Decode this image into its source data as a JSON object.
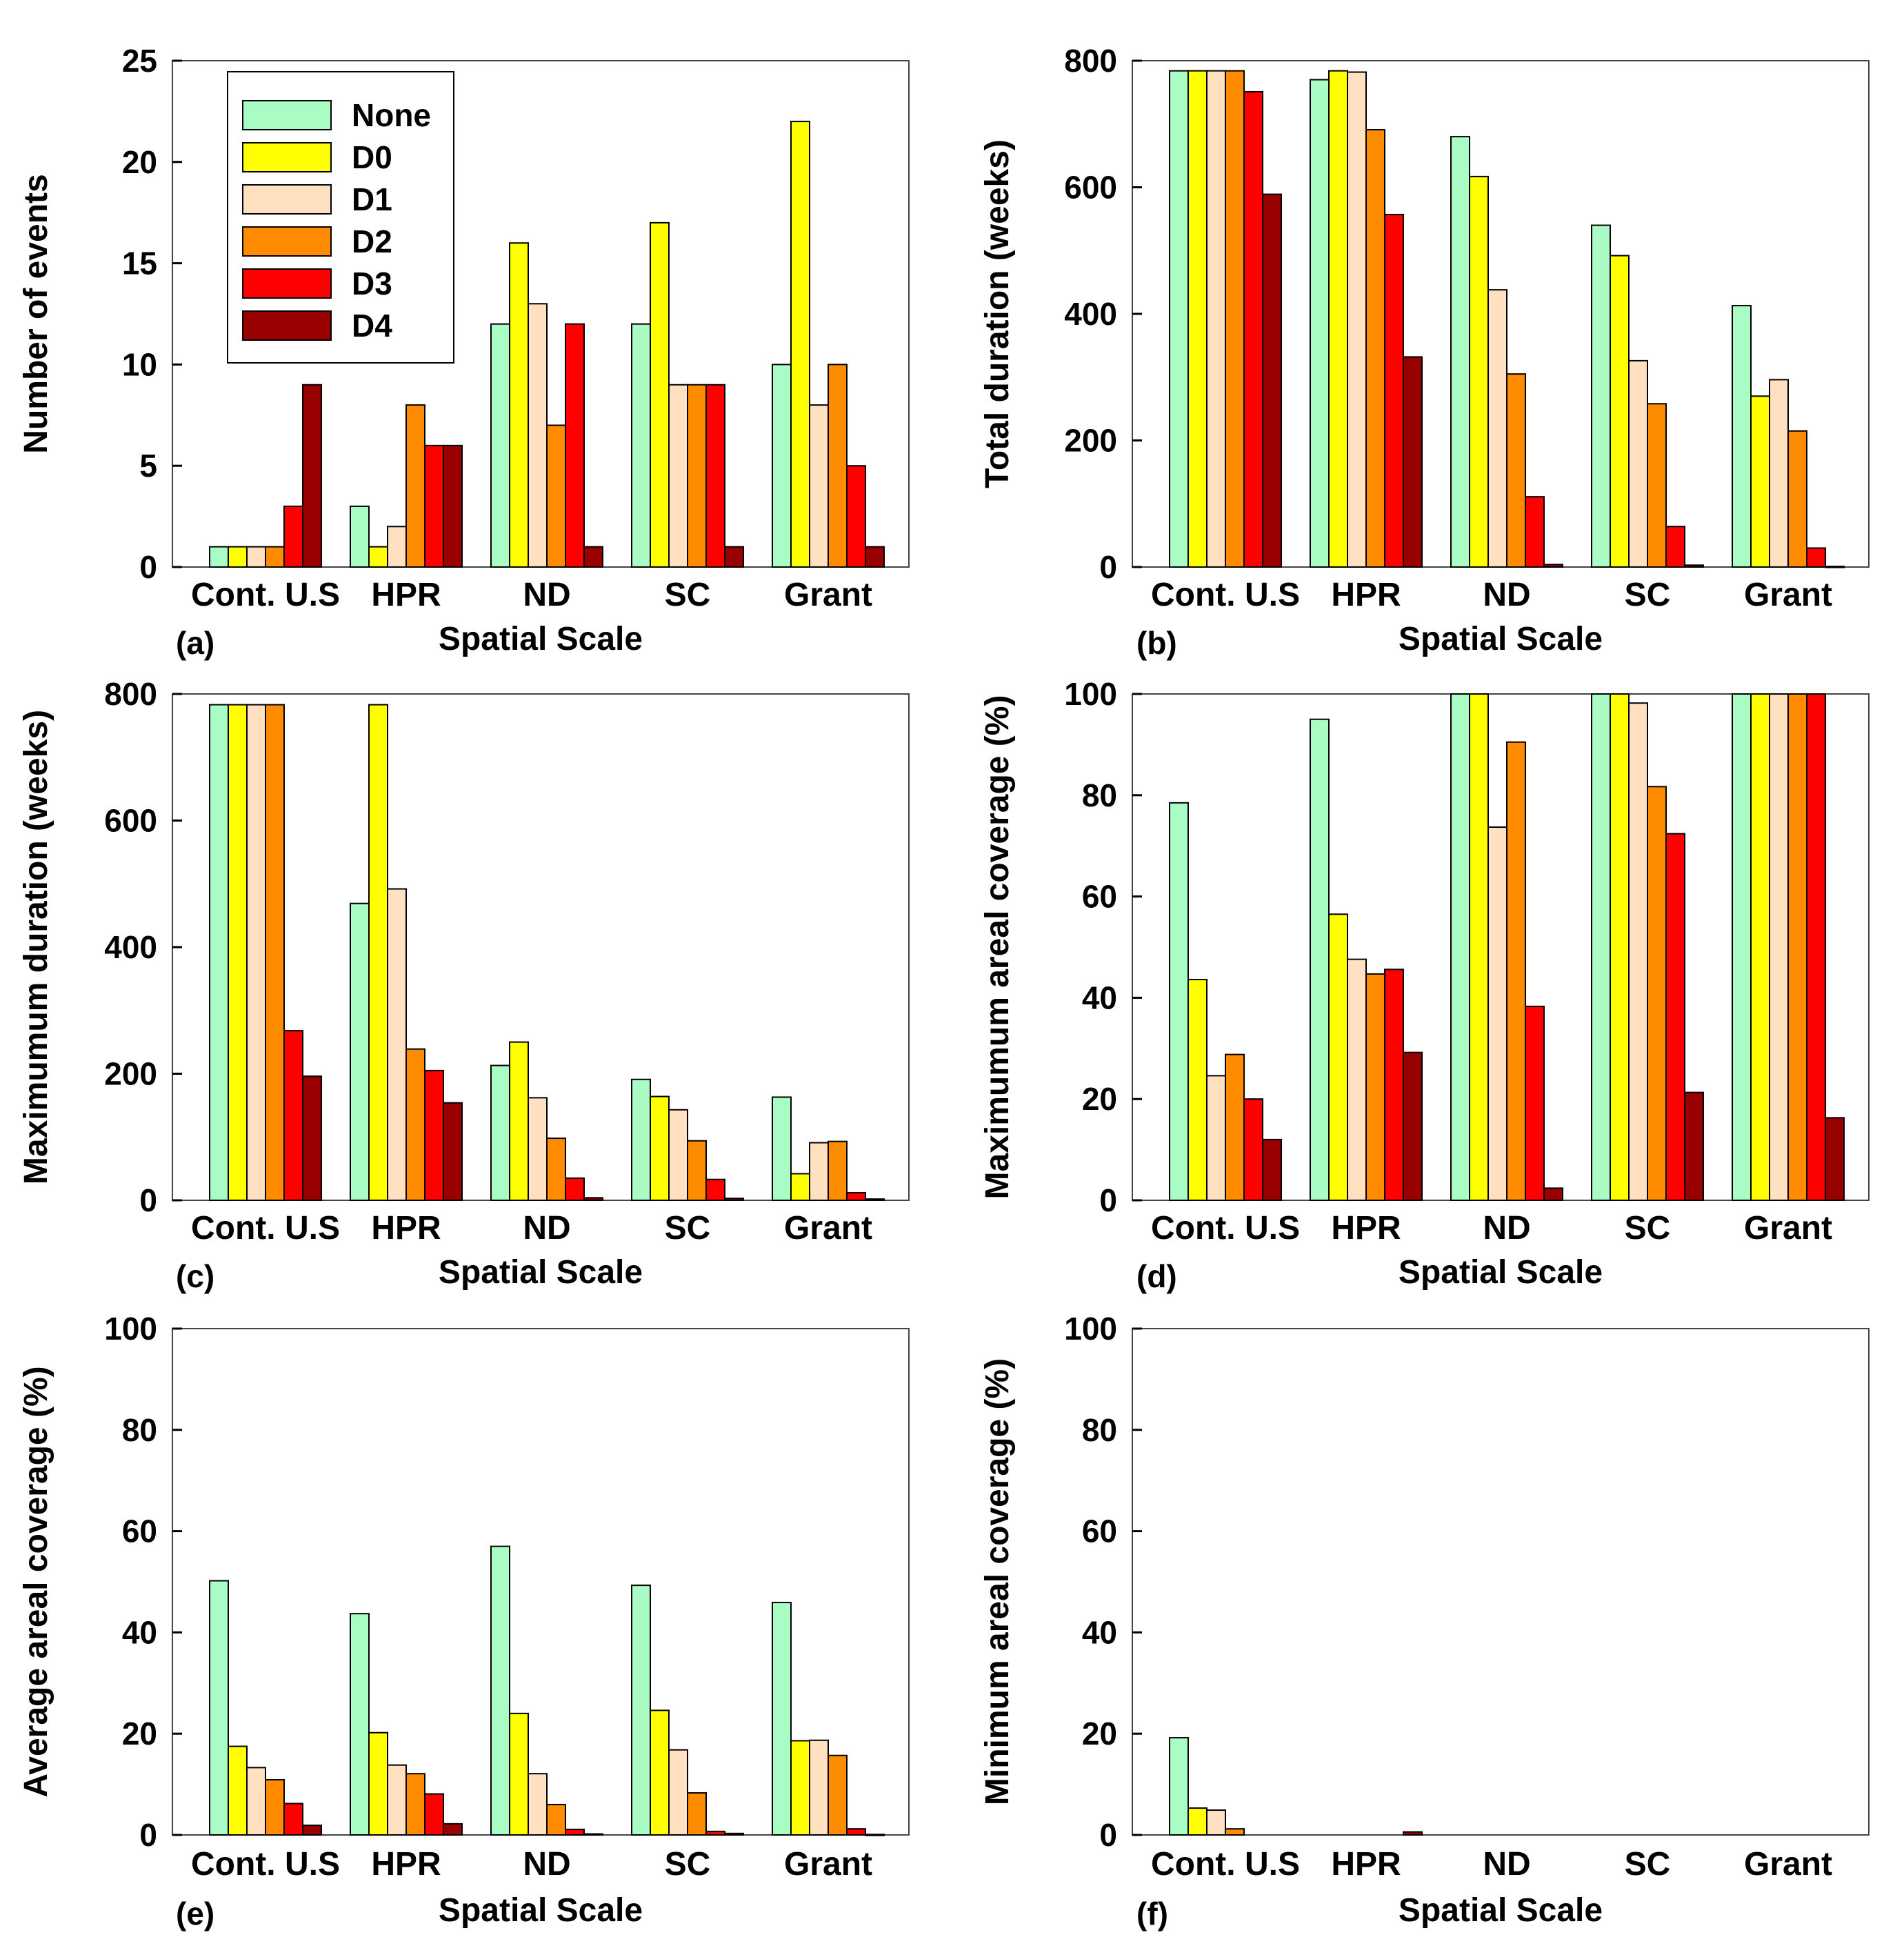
{
  "figure": {
    "legend": [
      {
        "name": "None",
        "color": "#a8fcc4"
      },
      {
        "name": "D0",
        "color": "#ffff00"
      },
      {
        "name": "D1",
        "color": "#ffe0c0"
      },
      {
        "name": "D2",
        "color": "#ff8c00"
      },
      {
        "name": "D3",
        "color": "#ff0000"
      },
      {
        "name": "D4",
        "color": "#990000"
      }
    ]
  },
  "chart_data": [
    {
      "panel": "(a)",
      "type": "bar",
      "xlabel": "Spatial Scale",
      "ylabel": "Number of events",
      "ylim": [
        0,
        25
      ],
      "yticks": [
        0,
        5,
        10,
        15,
        20,
        25
      ],
      "categories": [
        "Cont. U.S",
        "HPR",
        "ND",
        "SC",
        "Grant"
      ],
      "series": [
        {
          "name": "None",
          "values": [
            1,
            3,
            12,
            12,
            10
          ]
        },
        {
          "name": "D0",
          "values": [
            1,
            1,
            16,
            17,
            22
          ]
        },
        {
          "name": "D1",
          "values": [
            1,
            2,
            13,
            9,
            8
          ]
        },
        {
          "name": "D2",
          "values": [
            1,
            8,
            7,
            9,
            10
          ]
        },
        {
          "name": "D3",
          "values": [
            3,
            6,
            12,
            9,
            5
          ]
        },
        {
          "name": "D4",
          "values": [
            9,
            6,
            1,
            1,
            1
          ]
        }
      ]
    },
    {
      "panel": "(b)",
      "type": "bar",
      "xlabel": "Spatial Scale",
      "ylabel": "Total duration (weeks)",
      "ylim": [
        0,
        800
      ],
      "yticks": [
        0,
        200,
        400,
        600,
        800
      ],
      "categories": [
        "Cont. U.S",
        "HPR",
        "ND",
        "SC",
        "Grant"
      ],
      "series": [
        {
          "name": "None",
          "values": [
            784,
            770,
            680,
            540,
            413
          ]
        },
        {
          "name": "D0",
          "values": [
            784,
            784,
            617,
            492,
            270
          ]
        },
        {
          "name": "D1",
          "values": [
            784,
            782,
            438,
            326,
            296
          ]
        },
        {
          "name": "D2",
          "values": [
            784,
            691,
            305,
            258,
            215
          ]
        },
        {
          "name": "D3",
          "values": [
            751,
            557,
            111,
            64,
            30
          ]
        },
        {
          "name": "D4",
          "values": [
            589,
            332,
            4,
            3,
            1
          ]
        }
      ]
    },
    {
      "panel": "(c)",
      "type": "bar",
      "xlabel": "Spatial Scale",
      "ylabel": "Maximumum duration (weeks)",
      "ylim": [
        0,
        800
      ],
      "yticks": [
        0,
        200,
        400,
        600,
        800
      ],
      "categories": [
        "Cont. U.S",
        "HPR",
        "ND",
        "SC",
        "Grant"
      ],
      "series": [
        {
          "name": "None",
          "values": [
            783,
            469,
            213,
            191,
            163
          ]
        },
        {
          "name": "D0",
          "values": [
            783,
            783,
            250,
            164,
            42
          ]
        },
        {
          "name": "D1",
          "values": [
            783,
            492,
            162,
            143,
            91
          ]
        },
        {
          "name": "D2",
          "values": [
            783,
            239,
            98,
            94,
            93
          ]
        },
        {
          "name": "D3",
          "values": [
            268,
            205,
            35,
            33,
            12
          ]
        },
        {
          "name": "D4",
          "values": [
            196,
            154,
            4,
            3,
            2
          ]
        }
      ]
    },
    {
      "panel": "(d)",
      "type": "bar",
      "xlabel": "Spatial Scale",
      "ylabel": "Maximumum areal coverage (%)",
      "ylim": [
        0,
        100
      ],
      "yticks": [
        0,
        20,
        40,
        60,
        80,
        100
      ],
      "categories": [
        "Cont. U.S",
        "HPR",
        "ND",
        "SC",
        "Grant"
      ],
      "series": [
        {
          "name": "None",
          "values": [
            78.5,
            95,
            100,
            100,
            100
          ]
        },
        {
          "name": "D0",
          "values": [
            43.6,
            56.5,
            100,
            100,
            100
          ]
        },
        {
          "name": "D1",
          "values": [
            24.6,
            47.6,
            73.7,
            98.2,
            100
          ]
        },
        {
          "name": "D2",
          "values": [
            28.8,
            44.7,
            90.5,
            81.7,
            100
          ]
        },
        {
          "name": "D3",
          "values": [
            20,
            45.6,
            38.3,
            72.4,
            100
          ]
        },
        {
          "name": "D4",
          "values": [
            12,
            29.2,
            2.4,
            21.3,
            16.3
          ]
        }
      ]
    },
    {
      "panel": "(e)",
      "type": "bar",
      "xlabel": "Spatial Scale",
      "ylabel": "Average areal coverage (%)",
      "ylim": [
        0,
        100
      ],
      "yticks": [
        0,
        20,
        40,
        60,
        80,
        100
      ],
      "categories": [
        "Cont. U.S",
        "HPR",
        "ND",
        "SC",
        "Grant"
      ],
      "series": [
        {
          "name": "None",
          "values": [
            50.2,
            43.7,
            57,
            49.3,
            45.9
          ]
        },
        {
          "name": "D0",
          "values": [
            17.5,
            20.2,
            24,
            24.6,
            18.6
          ]
        },
        {
          "name": "D1",
          "values": [
            13.3,
            13.8,
            12.1,
            16.8,
            18.7
          ]
        },
        {
          "name": "D2",
          "values": [
            10.9,
            12.1,
            6,
            8.3,
            15.7
          ]
        },
        {
          "name": "D3",
          "values": [
            6.2,
            8.1,
            1.1,
            0.7,
            1.2
          ]
        },
        {
          "name": "D4",
          "values": [
            1.9,
            2.2,
            0.2,
            0.3,
            0.1
          ]
        }
      ]
    },
    {
      "panel": "(f)",
      "type": "bar",
      "xlabel": "Spatial Scale",
      "ylabel": "Minimum areal coverage (%)",
      "ylim": [
        0,
        100
      ],
      "yticks": [
        0,
        20,
        40,
        60,
        80,
        100
      ],
      "categories": [
        "Cont. U.S",
        "HPR",
        "ND",
        "SC",
        "Grant"
      ],
      "series": [
        {
          "name": "None",
          "values": [
            19.2,
            0,
            0,
            0,
            0
          ]
        },
        {
          "name": "D0",
          "values": [
            5.3,
            0,
            0,
            0,
            0
          ]
        },
        {
          "name": "D1",
          "values": [
            4.9,
            0,
            0,
            0,
            0
          ]
        },
        {
          "name": "D2",
          "values": [
            1.2,
            0,
            0,
            0,
            0
          ]
        },
        {
          "name": "D3",
          "values": [
            0,
            0,
            0,
            0,
            0
          ]
        },
        {
          "name": "D4",
          "values": [
            0,
            0.6,
            0,
            0,
            0
          ]
        }
      ]
    }
  ]
}
